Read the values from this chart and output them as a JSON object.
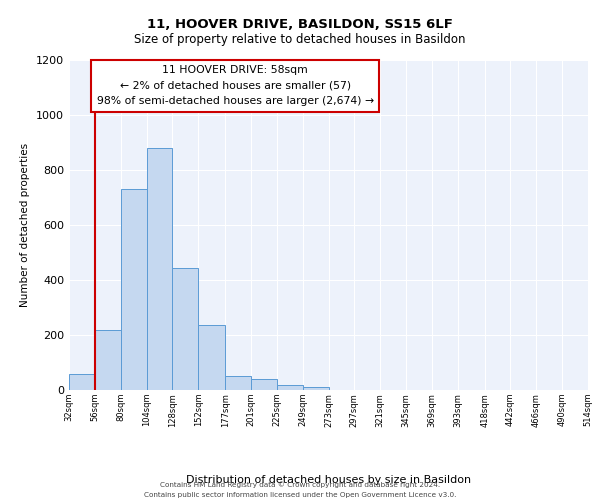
{
  "title": "11, HOOVER DRIVE, BASILDON, SS15 6LF",
  "subtitle": "Size of property relative to detached houses in Basildon",
  "xlabel": "Distribution of detached houses by size in Basildon",
  "ylabel": "Number of detached properties",
  "bin_labels": [
    "32sqm",
    "56sqm",
    "80sqm",
    "104sqm",
    "128sqm",
    "152sqm",
    "177sqm",
    "201sqm",
    "225sqm",
    "249sqm",
    "273sqm",
    "297sqm",
    "321sqm",
    "345sqm",
    "369sqm",
    "393sqm",
    "418sqm",
    "442sqm",
    "466sqm",
    "490sqm",
    "514sqm"
  ],
  "bar_heights": [
    57,
    220,
    730,
    880,
    445,
    235,
    50,
    40,
    20,
    10,
    0,
    0,
    0,
    0,
    0,
    0,
    0,
    0,
    0,
    0
  ],
  "bar_color": "#c5d8f0",
  "bar_edge_color": "#5b9bd5",
  "vline_x_idx": 1,
  "annotation_box_text": "11 HOOVER DRIVE: 58sqm\n← 2% of detached houses are smaller (57)\n98% of semi-detached houses are larger (2,674) →",
  "annotation_box_edge_color": "#cc0000",
  "vline_color": "#cc0000",
  "ylim": [
    0,
    1200
  ],
  "yticks": [
    0,
    200,
    400,
    600,
    800,
    1000,
    1200
  ],
  "footer_line1": "Contains HM Land Registry data © Crown copyright and database right 2024.",
  "footer_line2": "Contains public sector information licensed under the Open Government Licence v3.0.",
  "plot_bg_color": "#edf2fb"
}
